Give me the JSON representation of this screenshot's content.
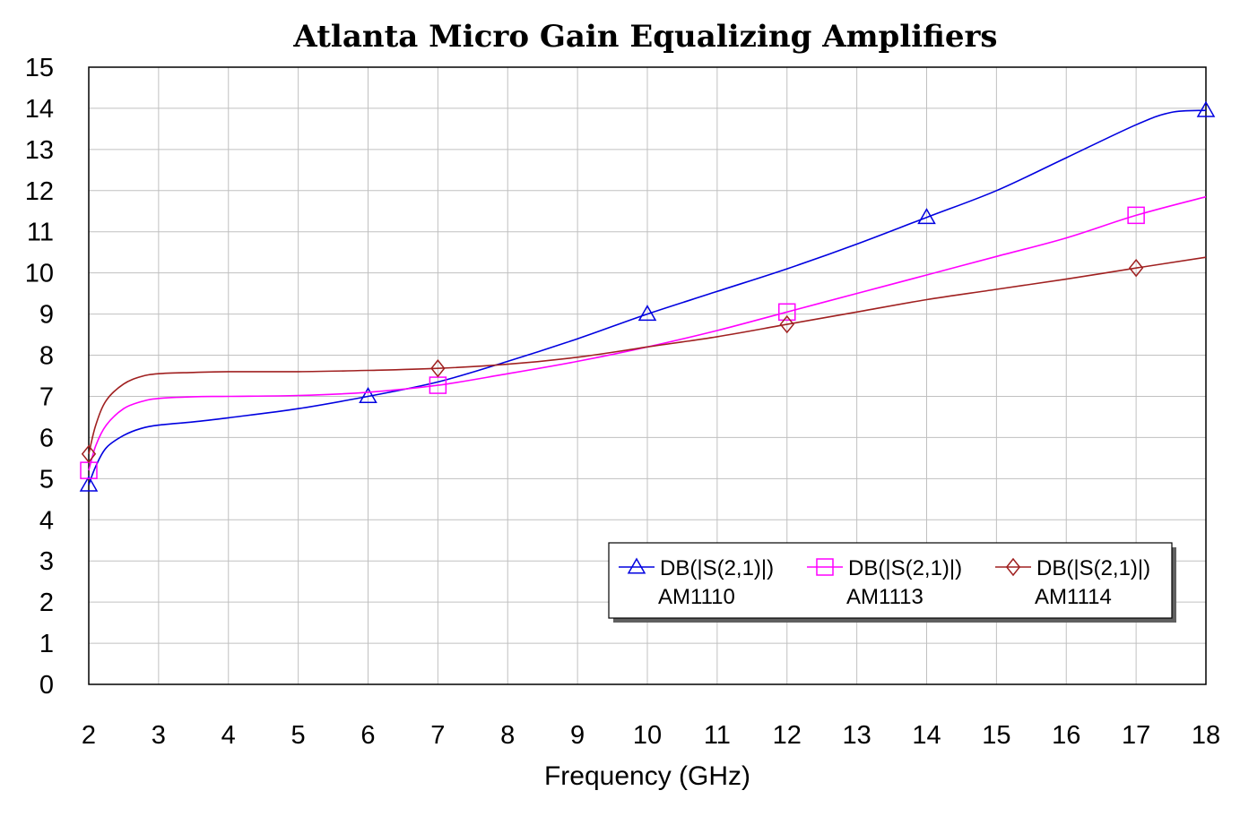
{
  "chart_data": {
    "type": "line",
    "title": "Atlanta Micro Gain Equalizing Amplifiers",
    "xlabel": "Frequency (GHz)",
    "ylabel": "",
    "xlim": [
      2,
      18
    ],
    "ylim": [
      0,
      15
    ],
    "x_ticks": [
      "2",
      "3",
      "4",
      "5",
      "6",
      "7",
      "8",
      "9",
      "10",
      "11",
      "12",
      "13",
      "14",
      "15",
      "16",
      "17",
      "18"
    ],
    "y_ticks": [
      "0",
      "1",
      "2",
      "3",
      "4",
      "5",
      "6",
      "7",
      "8",
      "9",
      "10",
      "11",
      "12",
      "13",
      "14",
      "15"
    ],
    "grid": true,
    "legend_position": "bottom-right",
    "series": [
      {
        "name": "DB(|S(2,1)|)",
        "subname": "AM1110",
        "color": "#0000e0",
        "marker": "triangle",
        "x": [
          2,
          2.1,
          2.25,
          2.5,
          2.75,
          3,
          3.5,
          4,
          5,
          6,
          7,
          8,
          9,
          10,
          11,
          12,
          13,
          14,
          15,
          16,
          17,
          17.5,
          18
        ],
        "y": [
          4.85,
          5.3,
          5.75,
          6.05,
          6.22,
          6.3,
          6.38,
          6.48,
          6.7,
          7.0,
          7.35,
          7.85,
          8.4,
          9.0,
          9.55,
          10.1,
          10.7,
          11.35,
          12.0,
          12.8,
          13.6,
          13.9,
          13.95
        ],
        "markers_x": [
          2,
          6,
          10,
          14,
          18
        ],
        "markers_y": [
          4.85,
          7.0,
          9.0,
          11.35,
          13.95
        ]
      },
      {
        "name": "DB(|S(2,1)|)",
        "subname": "AM1113",
        "color": "#ff00ff",
        "marker": "square",
        "x": [
          2,
          2.1,
          2.25,
          2.5,
          2.75,
          3,
          3.5,
          4,
          5,
          6,
          7,
          8,
          9,
          10,
          11,
          12,
          13,
          14,
          15,
          16,
          17,
          18
        ],
        "y": [
          5.2,
          5.8,
          6.3,
          6.7,
          6.87,
          6.95,
          6.99,
          7.0,
          7.02,
          7.1,
          7.27,
          7.55,
          7.85,
          8.2,
          8.6,
          9.05,
          9.5,
          9.95,
          10.4,
          10.85,
          11.4,
          11.85
        ],
        "markers_x": [
          2,
          7,
          12,
          17
        ],
        "markers_y": [
          5.2,
          7.27,
          9.05,
          11.4
        ]
      },
      {
        "name": "DB(|S(2,1)|)",
        "subname": "AM1114",
        "color": "#a02020",
        "marker": "diamond",
        "x": [
          2,
          2.1,
          2.25,
          2.5,
          2.75,
          3,
          3.5,
          4,
          5,
          6,
          7,
          8,
          9,
          10,
          11,
          12,
          13,
          14,
          15,
          16,
          17,
          18
        ],
        "y": [
          5.6,
          6.3,
          6.9,
          7.3,
          7.48,
          7.55,
          7.58,
          7.6,
          7.6,
          7.63,
          7.68,
          7.78,
          7.95,
          8.2,
          8.45,
          8.75,
          9.05,
          9.35,
          9.6,
          9.85,
          10.12,
          10.38
        ],
        "markers_x": [
          2,
          7,
          12,
          17
        ],
        "markers_y": [
          5.6,
          7.68,
          8.75,
          10.12
        ]
      }
    ]
  }
}
